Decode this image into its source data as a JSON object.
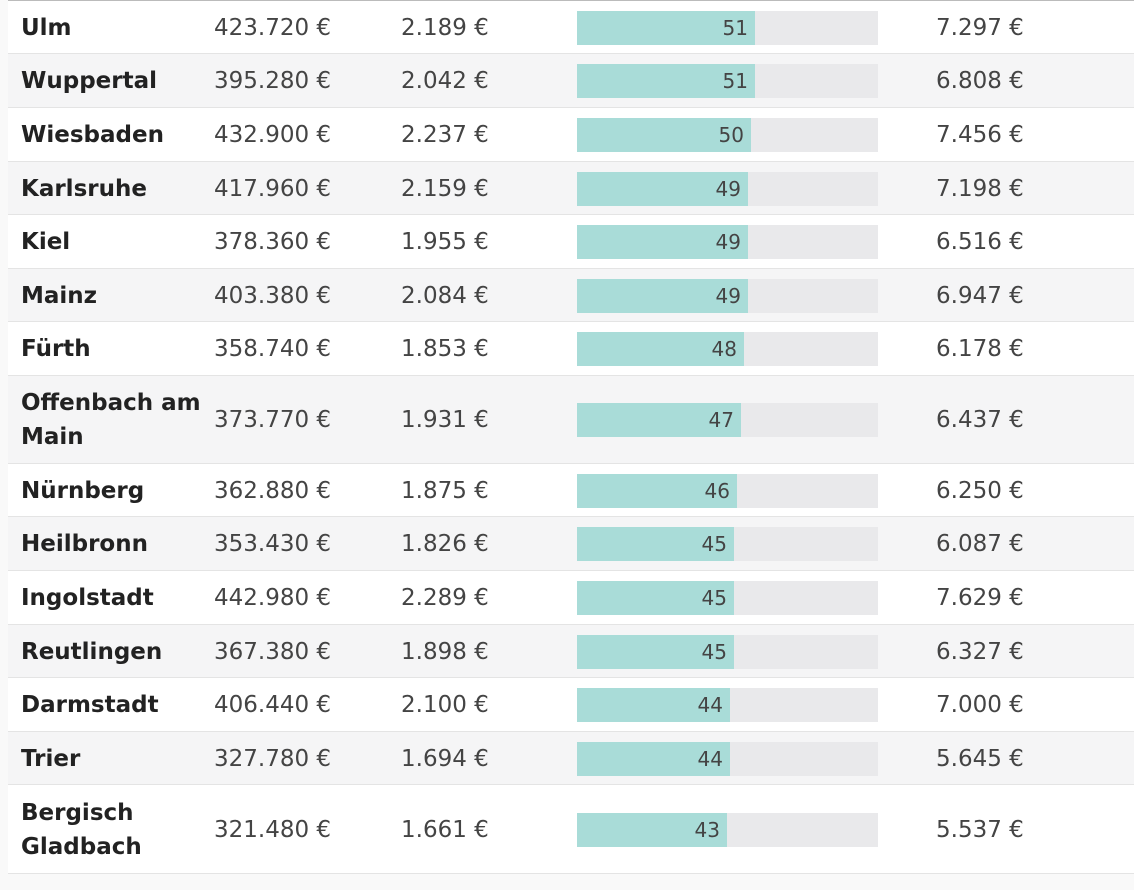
{
  "colors": {
    "bar_fill": "#a9dcd8",
    "bar_track": "#e9e9eb",
    "row_alt": "#f5f5f6"
  },
  "bar_scale_max": 86.4,
  "rows": [
    {
      "city": "Ulm",
      "price": "423.720 €",
      "per_sqm": "2.189 €",
      "score": 51,
      "score_label": "51",
      "income": "7.297 €"
    },
    {
      "city": "Wuppertal",
      "price": "395.280 €",
      "per_sqm": "2.042 €",
      "score": 51,
      "score_label": "51",
      "income": "6.808 €"
    },
    {
      "city": "Wiesbaden",
      "price": "432.900 €",
      "per_sqm": "2.237 €",
      "score": 50,
      "score_label": "50",
      "income": "7.456 €"
    },
    {
      "city": "Karlsruhe",
      "price": "417.960 €",
      "per_sqm": "2.159 €",
      "score": 49,
      "score_label": "49",
      "income": "7.198 €"
    },
    {
      "city": "Kiel",
      "price": "378.360 €",
      "per_sqm": "1.955 €",
      "score": 49,
      "score_label": "49",
      "income": "6.516 €"
    },
    {
      "city": "Mainz",
      "price": "403.380 €",
      "per_sqm": "2.084 €",
      "score": 49,
      "score_label": "49",
      "income": "6.947 €"
    },
    {
      "city": "Fürth",
      "price": "358.740 €",
      "per_sqm": "1.853 €",
      "score": 48,
      "score_label": "48",
      "income": "6.178 €"
    },
    {
      "city": "Offenbach am Main",
      "price": "373.770 €",
      "per_sqm": "1.931 €",
      "score": 47,
      "score_label": "47",
      "income": "6.437 €"
    },
    {
      "city": "Nürnberg",
      "price": "362.880 €",
      "per_sqm": "1.875 €",
      "score": 46,
      "score_label": "46",
      "income": "6.250 €"
    },
    {
      "city": "Heilbronn",
      "price": "353.430 €",
      "per_sqm": "1.826 €",
      "score": 45,
      "score_label": "45",
      "income": "6.087 €"
    },
    {
      "city": "Ingolstadt",
      "price": "442.980 €",
      "per_sqm": "2.289 €",
      "score": 45,
      "score_label": "45",
      "income": "7.629 €"
    },
    {
      "city": "Reutlingen",
      "price": "367.380 €",
      "per_sqm": "1.898 €",
      "score": 45,
      "score_label": "45",
      "income": "6.327 €"
    },
    {
      "city": "Darmstadt",
      "price": "406.440 €",
      "per_sqm": "2.100 €",
      "score": 44,
      "score_label": "44",
      "income": "7.000 €"
    },
    {
      "city": "Trier",
      "price": "327.780 €",
      "per_sqm": "1.694 €",
      "score": 44,
      "score_label": "44",
      "income": "5.645 €"
    },
    {
      "city": "Bergisch Gladbach",
      "price": "321.480 €",
      "per_sqm": "1.661 €",
      "score": 43,
      "score_label": "43",
      "income": "5.537 €"
    }
  ]
}
